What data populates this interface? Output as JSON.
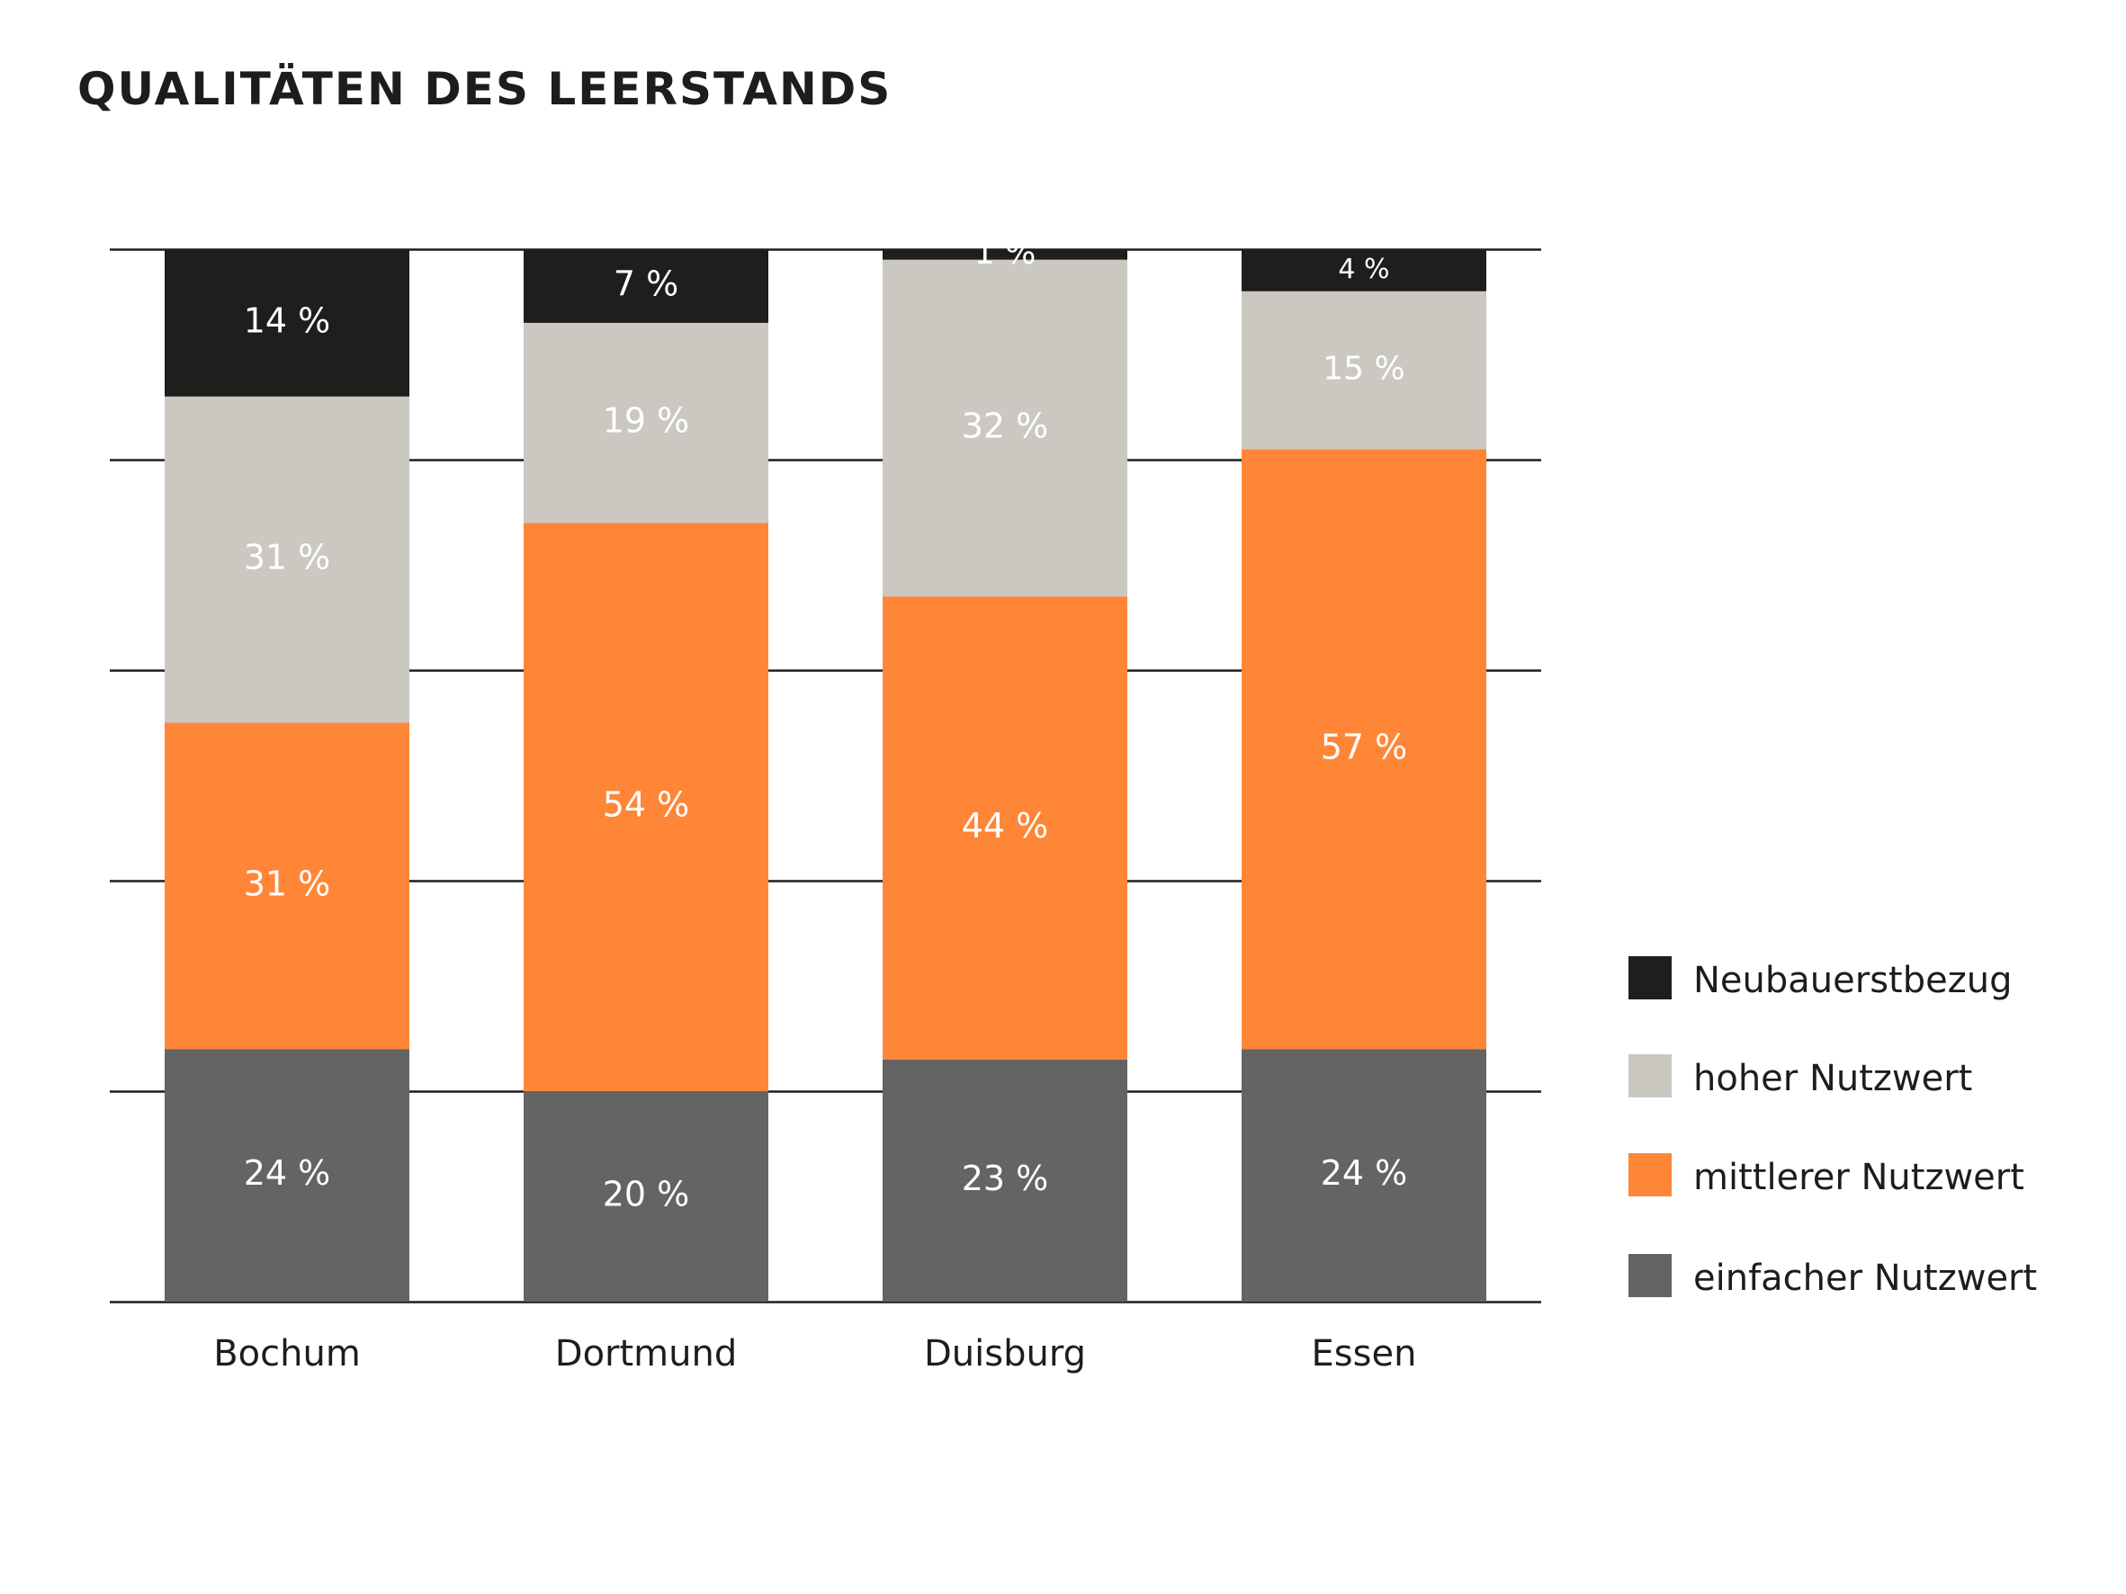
{
  "title": "QUALITÄTEN DES LEERSTANDS",
  "colors": {
    "einfacher": "#646464",
    "mittlerer": "#ff8637",
    "hoher": "#cac8c1",
    "neubau": "#1e1e1c",
    "text_light": "#ffffff",
    "text_dark": "#1d1d1b",
    "grid": "#1d1d1b"
  },
  "legend": [
    {
      "label": "Neubauerstbezug",
      "color": "#1e1e1c"
    },
    {
      "label": "hoher Nutzwert",
      "color": "#cac8c1"
    },
    {
      "label": "mittlerer Nutzwert",
      "color": "#ff8637"
    },
    {
      "label": "einfacher Nutzwert",
      "color": "#646464"
    }
  ],
  "chart_data": {
    "type": "bar",
    "stacked": true,
    "title": "QUALITÄTEN DES LEERSTANDS",
    "xlabel": "",
    "ylabel": "",
    "ylim": [
      0,
      100
    ],
    "grid": true,
    "legend_position": "right",
    "categories": [
      "Bochum",
      "Dortmund",
      "Duisburg",
      "Essen"
    ],
    "series": [
      {
        "name": "einfacher Nutzwert",
        "color": "#646464",
        "values": [
          24,
          20,
          23,
          24
        ],
        "labels": [
          "24 %",
          "20 %",
          "23 %",
          "24 %"
        ]
      },
      {
        "name": "mittlerer Nutzwert",
        "color": "#ff8637",
        "values": [
          31,
          54,
          44,
          57
        ],
        "labels": [
          "31 %",
          "54 %",
          "44 %",
          "57 %"
        ]
      },
      {
        "name": "hoher Nutzwert",
        "color": "#cac8c1",
        "values": [
          31,
          19,
          32,
          15
        ],
        "labels": [
          "31 %",
          "19 %",
          "32 %",
          "15 %"
        ]
      },
      {
        "name": "Neubauerstbezug",
        "color": "#1e1e1c",
        "values": [
          14,
          7,
          1,
          4
        ],
        "labels": [
          "14 %",
          "7 %",
          "1 %",
          "4 %"
        ]
      }
    ]
  }
}
